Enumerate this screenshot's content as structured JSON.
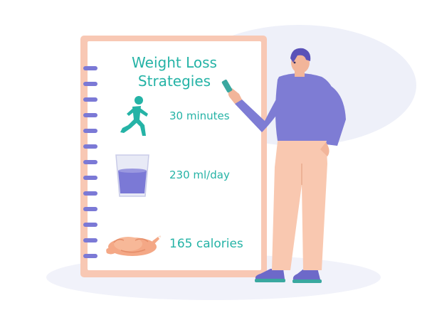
{
  "board": {
    "title_line1": "Weight Loss",
    "title_line2": "Strategies"
  },
  "strategies": [
    {
      "icon": "running-person-icon",
      "value": "30 minutes"
    },
    {
      "icon": "water-glass-icon",
      "value": "230 ml/day"
    },
    {
      "icon": "roast-chicken-icon",
      "value": "165 calories"
    }
  ],
  "colors": {
    "accent_teal": "#25b3a6",
    "board_frame": "#f8c8b4",
    "board_paper": "#ffffff",
    "ring_purple": "#7b79d6",
    "shirt_purple": "#7e7cd4",
    "pants_peach": "#f9c8b0",
    "shoes_purple": "#6d69c9",
    "backdrop_lavender": "#eef0f9"
  }
}
